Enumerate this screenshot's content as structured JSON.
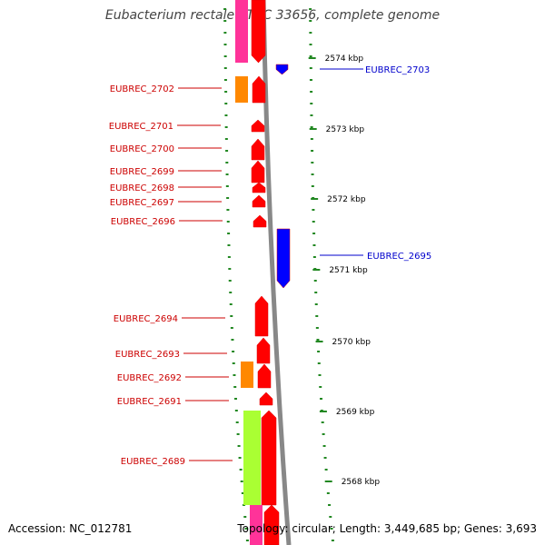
{
  "title": "Eubacterium rectale ATCC 33656, complete genome",
  "footer": {
    "accession": "Accession: NC_012781",
    "summary": "Topology: circular; Length: 3,449,685 bp; Genes: 3,693"
  },
  "colors": {
    "forward_gene": "#ff0000",
    "reverse_gene": "#0000ff",
    "rna_gene": "#ff8800",
    "hypothetical": "#aaff33",
    "pink": "#ff3399",
    "ruler": "#228822",
    "backbone": "#888888",
    "label_forward": "#cc0000",
    "label_reverse": "#0000cc"
  },
  "scale_labels": [
    {
      "text": "2574 kbp",
      "kbp": 2574
    },
    {
      "text": "2573 kbp",
      "kbp": 2573
    },
    {
      "text": "2572 kbp",
      "kbp": 2572
    },
    {
      "text": "2571 kbp",
      "kbp": 2571
    },
    {
      "text": "2570 kbp",
      "kbp": 2570
    },
    {
      "text": "2569 kbp",
      "kbp": 2569
    },
    {
      "text": "2568 kbp",
      "kbp": 2568
    }
  ],
  "genes_reverse_labels": [
    {
      "label": "EUBREC_2703"
    },
    {
      "label": "EUBREC_2695"
    }
  ],
  "genes_forward_labels": [
    {
      "label": "EUBREC_2702"
    },
    {
      "label": "EUBREC_2701"
    },
    {
      "label": "EUBREC_2700"
    },
    {
      "label": "EUBREC_2699"
    },
    {
      "label": "EUBREC_2698"
    },
    {
      "label": "EUBREC_2697"
    },
    {
      "label": "EUBREC_2696"
    },
    {
      "label": "EUBREC_2694"
    },
    {
      "label": "EUBREC_2693"
    },
    {
      "label": "EUBREC_2692"
    },
    {
      "label": "EUBREC_2691"
    },
    {
      "label": "EUBREC_2689"
    }
  ]
}
